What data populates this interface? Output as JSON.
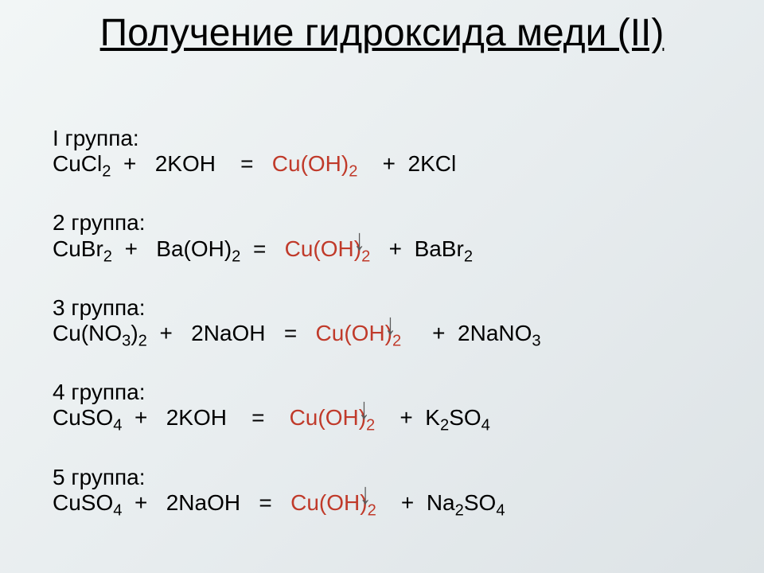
{
  "title": "Получение гидроксида меди (II)",
  "background_gradient": [
    "#f2f6f6",
    "#e8edef",
    "#dde3e6"
  ],
  "title_fontsize": 48,
  "body_fontsize": 28,
  "text_color": "#000000",
  "highlight_color": "#c03a2a",
  "arrow_color": "#5a5a5a",
  "groups": [
    {
      "label": "I группа:",
      "equation": {
        "lhs_a": "CuCl",
        "lhs_a_sub": "2",
        "lhs_plus": "  +   ",
        "lhs_b_coef": "2",
        "lhs_b": "KOH",
        "eq": "    =   ",
        "prod": "Cu(OH)",
        "prod_sub": "2",
        "rhs_plus": "    +  ",
        "rhs_coef": "2",
        "rhs": "KCl"
      }
    },
    {
      "label": "2 группа:",
      "equation": {
        "lhs_a": "CuBr",
        "lhs_a_sub": "2",
        "lhs_plus": "  +   ",
        "lhs_b_coef": "",
        "lhs_b_pre": "Ba(OH)",
        "lhs_b_sub": "2",
        "eq": "  =   ",
        "prod": "Cu(OH)",
        "prod_sub": "2",
        "rhs_plus": "   +  ",
        "rhs_coef": "",
        "rhs_pre": "BaBr",
        "rhs_sub": "2"
      }
    },
    {
      "label": "3 группа:",
      "equation": {
        "lhs_a_pre": "Cu(NO",
        "lhs_a_sub1": "3",
        "lhs_a_mid": ")",
        "lhs_a_sub2": "2",
        "lhs_plus": "  +   ",
        "lhs_b_coef": "2",
        "lhs_b": "NaOH",
        "eq": "   =   ",
        "prod": "Cu(OH)",
        "prod_sub": "2",
        "rhs_plus": "     +  ",
        "rhs_coef": "2",
        "rhs_pre": "NaNO",
        "rhs_sub": "3"
      }
    },
    {
      "label": "4 группа:",
      "equation": {
        "lhs_a_pre": "CuSO",
        "lhs_a_sub": "4",
        "lhs_plus": "  +   ",
        "lhs_b_coef": "2",
        "lhs_b": "KOH",
        "eq": "    =    ",
        "prod": "Cu(OH)",
        "prod_sub": "2",
        "rhs_plus": "    +  ",
        "rhs_pre": "K",
        "rhs_sub1": "2",
        "rhs_mid": "SO",
        "rhs_sub2": "4"
      }
    },
    {
      "label": "5 группа:",
      "equation": {
        "lhs_a_pre": "CuSO",
        "lhs_a_sub": "4",
        "lhs_plus": "  +   ",
        "lhs_b_coef": "2",
        "lhs_b": "NaOH",
        "eq": "   =   ",
        "prod": "Cu(OH)",
        "prod_sub": "2",
        "rhs_plus": "    +  ",
        "rhs_pre": "Na",
        "rhs_sub1": "2",
        "rhs_mid": "SO",
        "rhs_sub2": "4"
      }
    }
  ]
}
